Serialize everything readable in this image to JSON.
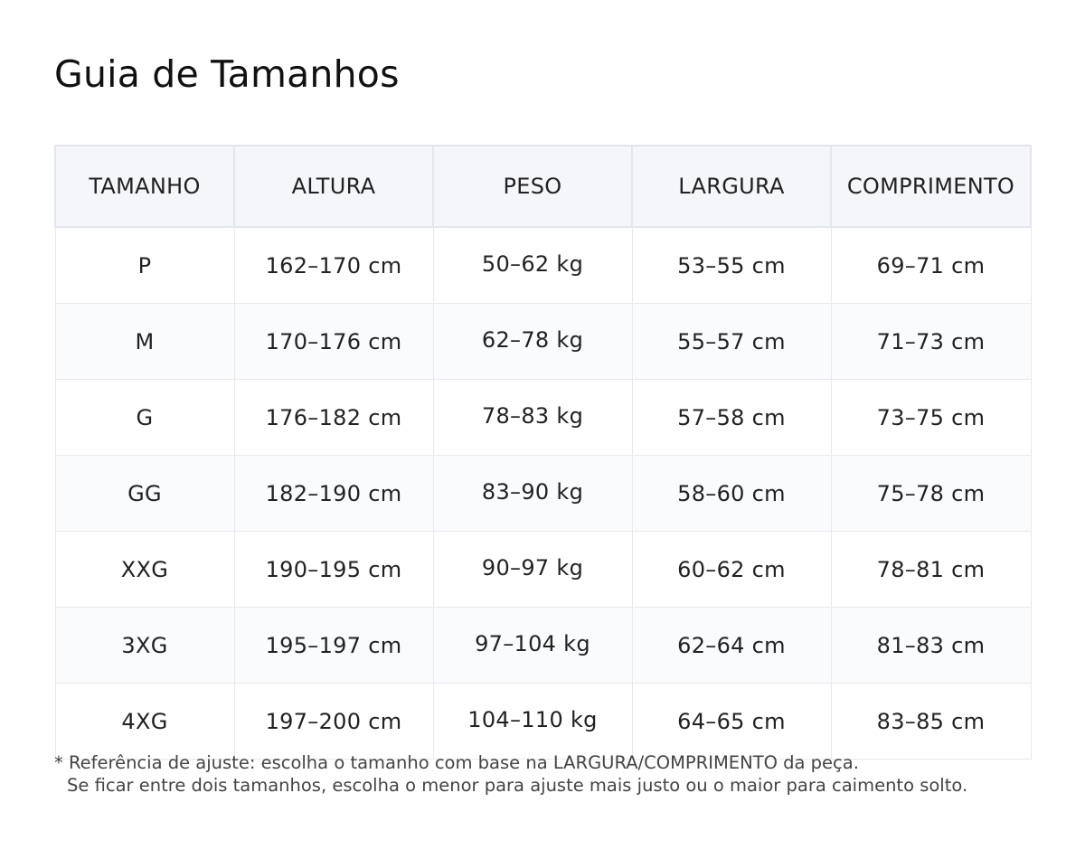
{
  "page": {
    "title": "Guia de Tamanhos"
  },
  "table": {
    "headers": [
      "TAMANHO",
      "ALTURA",
      "PESO",
      "LARGURA",
      "COMPRIMENTO"
    ],
    "rows": [
      [
        "P",
        "162–170 cm",
        "50–62 kg",
        "53–55 cm",
        "69–71 cm"
      ],
      [
        "M",
        "170–176 cm",
        "62–78 kg",
        "55–57 cm",
        "71–73 cm"
      ],
      [
        "G",
        "176–182 cm",
        "78–83 kg",
        "57–58 cm",
        "73–75 cm"
      ],
      [
        "GG",
        "182–190 cm",
        "83–90 kg",
        "58–60 cm",
        "75–78 cm"
      ],
      [
        "XXG",
        "190–195 cm",
        "90–97 kg",
        "60–62 cm",
        "78–81 cm"
      ],
      [
        "3XG",
        "195–197 cm",
        "97–104 kg",
        "62–64 cm",
        "81–83 cm"
      ],
      [
        "4XG",
        "197–200 cm",
        "104–110 kg",
        "64–65 cm",
        "83–85 cm"
      ]
    ]
  },
  "footnote": {
    "line1": "* Referência de ajuste: escolha o tamanho com base na LARGURA/COMPRIMENTO da peça.",
    "line2": "Se ficar entre dois tamanhos, escolha o menor para ajuste mais justo ou o maior para caimento solto."
  },
  "colors": {
    "header_bg": "#f5f6fa",
    "stripe_bg": "#fafbfd",
    "border": "#e4e6ee",
    "text": "#222222",
    "footnote_text": "#444444"
  }
}
